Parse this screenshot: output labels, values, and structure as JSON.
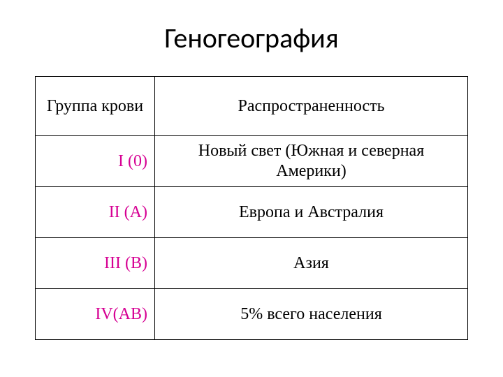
{
  "title": "Геногеография",
  "table": {
    "header": {
      "col1": "Группа крови",
      "col2": "Распространенность"
    },
    "rows": [
      {
        "group": "I (0)",
        "dist": "Новый свет (Южная и северная Америки)"
      },
      {
        "group": "II (A)",
        "dist": "Европа и Австралия"
      },
      {
        "group": "III (B)",
        "dist": "Азия"
      },
      {
        "group": "IV(AB)",
        "dist": "5% всего населения"
      }
    ]
  },
  "colors": {
    "accent": "#d60093",
    "text": "#000000",
    "background": "#ffffff",
    "border": "#000000"
  },
  "fonts": {
    "title_family": "Calibri, Arial, sans-serif",
    "body_family": "\"Times New Roman\", Times, serif",
    "title_size_pt": 30,
    "cell_size_pt": 18
  }
}
